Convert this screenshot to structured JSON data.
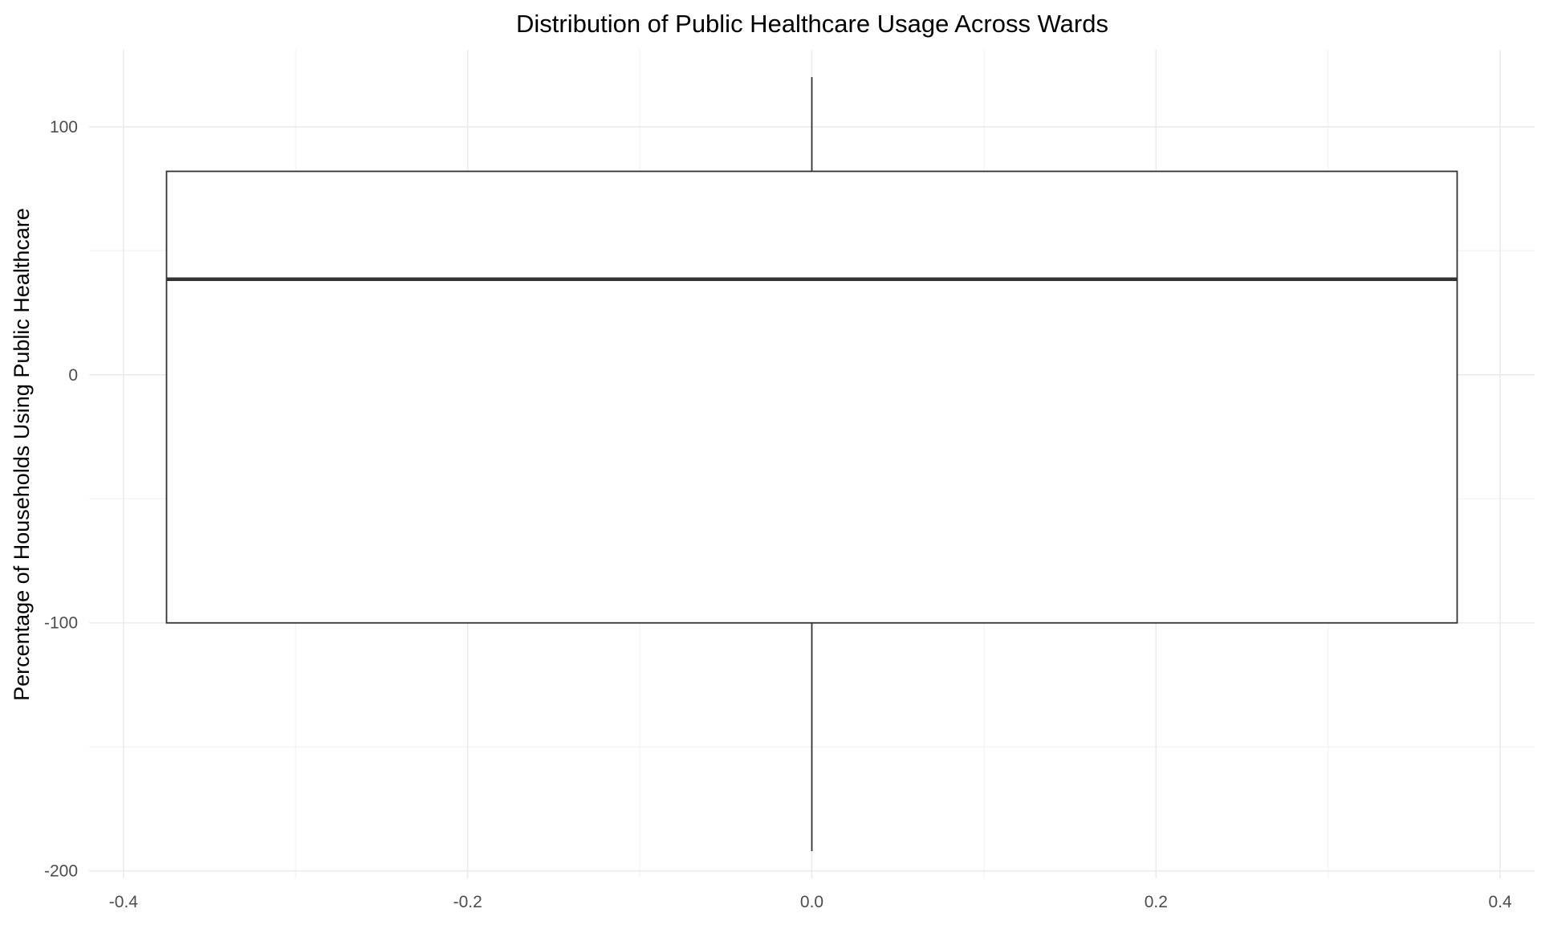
{
  "chart_data": {
    "type": "boxplot",
    "title": "Distribution of Public Healthcare Usage Across Wards",
    "xlabel": "",
    "ylabel": "Percentage of Households Using Public Healthcare",
    "xlim": [
      -0.42,
      0.42
    ],
    "ylim": [
      -203,
      131
    ],
    "x_ticks": [
      -0.4,
      -0.2,
      0.0,
      0.2,
      0.4
    ],
    "x_tick_labels": [
      "-0.4",
      "-0.2",
      "0.0",
      "0.2",
      "0.4"
    ],
    "x_minor_ticks": [
      -0.3,
      -0.1,
      0.1,
      0.3
    ],
    "y_ticks": [
      -200,
      -100,
      0,
      100
    ],
    "y_tick_labels": [
      "-200",
      "-100",
      "0",
      "100"
    ],
    "y_minor_ticks": [
      -150,
      -50,
      50
    ],
    "grid": true,
    "legend": "none",
    "box": {
      "x_center": 0.0,
      "x_left": -0.375,
      "x_right": 0.375,
      "whisker_low": -192,
      "q1": -100,
      "median": 38.5,
      "q3": 82,
      "whisker_high": 120
    },
    "colors": {
      "box_fill": "#ffffff",
      "box_stroke": "#333333",
      "whisker": "#333333",
      "median": "#333333"
    }
  }
}
